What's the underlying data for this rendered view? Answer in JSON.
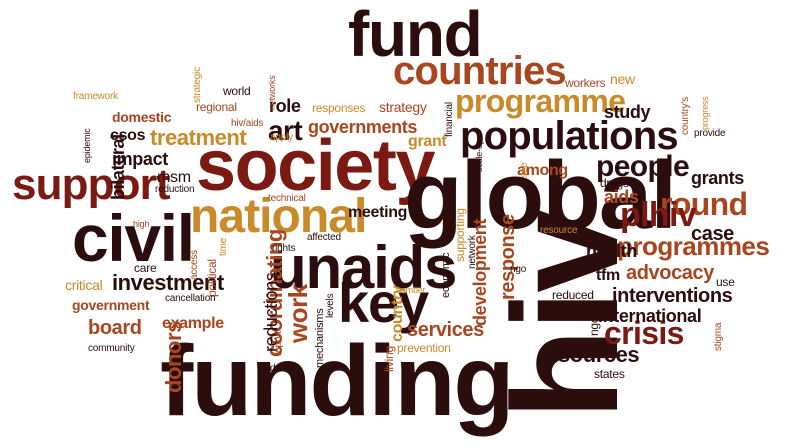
{
  "palette": {
    "dark": "#2b0d0d",
    "maroon": "#7a1a12",
    "rust": "#a8461f",
    "orange": "#c98a2a"
  },
  "words": [
    {
      "text": "fund",
      "color": "dark"
    },
    {
      "text": "countries",
      "color": "rust"
    },
    {
      "text": "programme",
      "color": "orange"
    },
    {
      "text": "populations",
      "color": "dark"
    },
    {
      "text": "society",
      "color": "maroon"
    },
    {
      "text": "support",
      "color": "maroon"
    },
    {
      "text": "civil",
      "color": "dark"
    },
    {
      "text": "global",
      "color": "dark"
    },
    {
      "text": "national",
      "color": "orange"
    },
    {
      "text": "unaids",
      "color": "dark"
    },
    {
      "text": "key",
      "color": "dark"
    },
    {
      "text": "hiv",
      "color": "dark"
    },
    {
      "text": "funding",
      "color": "dark"
    },
    {
      "text": "people",
      "color": "dark"
    },
    {
      "text": "round",
      "color": "rust"
    },
    {
      "text": "plhiv",
      "color": "maroon"
    },
    {
      "text": "programmes",
      "color": "rust"
    },
    {
      "text": "crisis",
      "color": "maroon"
    },
    {
      "text": "art",
      "color": "dark"
    },
    {
      "text": "work",
      "color": "rust"
    },
    {
      "text": "treatment",
      "color": "orange"
    },
    {
      "text": "governments",
      "color": "rust"
    },
    {
      "text": "coordinating",
      "color": "rust"
    },
    {
      "text": "reductions",
      "color": "dark"
    },
    {
      "text": "investment",
      "color": "dark"
    },
    {
      "text": "impact",
      "color": "dark"
    },
    {
      "text": "board",
      "color": "rust"
    },
    {
      "text": "donors",
      "color": "rust"
    },
    {
      "text": "services",
      "color": "rust"
    },
    {
      "text": "resources",
      "color": "dark"
    },
    {
      "text": "health",
      "color": "dark"
    },
    {
      "text": "advocacy",
      "color": "rust"
    },
    {
      "text": "interventions",
      "color": "dark"
    },
    {
      "text": "international",
      "color": "dark"
    },
    {
      "text": "case",
      "color": "dark"
    },
    {
      "text": "aids",
      "color": "rust"
    },
    {
      "text": "grants",
      "color": "dark"
    },
    {
      "text": "study",
      "color": "dark"
    },
    {
      "text": "strategy",
      "color": "rust"
    },
    {
      "text": "role",
      "color": "dark"
    },
    {
      "text": "grant",
      "color": "orange"
    },
    {
      "text": "csos",
      "color": "dark"
    },
    {
      "text": "domestic",
      "color": "rust"
    },
    {
      "text": "msm",
      "color": "dark"
    },
    {
      "text": "bilateral",
      "color": "dark"
    },
    {
      "text": "example",
      "color": "rust"
    },
    {
      "text": "government",
      "color": "rust"
    },
    {
      "text": "critical",
      "color": "orange"
    },
    {
      "text": "tfm",
      "color": "dark"
    },
    {
      "text": "reduced",
      "color": "dark"
    },
    {
      "text": "states",
      "color": "dark"
    },
    {
      "text": "prevention",
      "color": "orange"
    },
    {
      "text": "response",
      "color": "rust"
    },
    {
      "text": "development",
      "color": "rust"
    },
    {
      "text": "among",
      "color": "rust"
    },
    {
      "text": "meeting",
      "color": "dark"
    },
    {
      "text": "workers",
      "color": "rust"
    },
    {
      "text": "new",
      "color": "orange"
    },
    {
      "text": "world",
      "color": "dark"
    },
    {
      "text": "regional",
      "color": "rust"
    },
    {
      "text": "responses",
      "color": "orange"
    },
    {
      "text": "framework",
      "color": "orange"
    },
    {
      "text": "country",
      "color": "orange"
    },
    {
      "text": "political",
      "color": "rust"
    },
    {
      "text": "care",
      "color": "dark"
    },
    {
      "text": "community",
      "color": "dark"
    },
    {
      "text": "cancellation",
      "color": "dark"
    },
    {
      "text": "drugs",
      "color": "dark"
    },
    {
      "text": "provide",
      "color": "dark"
    },
    {
      "text": "use",
      "color": "dark"
    },
    {
      "text": "ngos",
      "color": "dark"
    },
    {
      "text": "stigma",
      "color": "rust"
    },
    {
      "text": "ngo",
      "color": "dark"
    },
    {
      "text": "resource",
      "color": "orange"
    },
    {
      "text": "economic",
      "color": "dark"
    },
    {
      "text": "supporting",
      "color": "orange"
    },
    {
      "text": "network",
      "color": "dark"
    },
    {
      "text": "living",
      "color": "rust"
    },
    {
      "text": "mechanisms",
      "color": "dark"
    },
    {
      "text": "levels",
      "color": "dark"
    },
    {
      "text": "donor",
      "color": "dark"
    },
    {
      "text": "report",
      "color": "rust"
    },
    {
      "text": "rights",
      "color": "dark"
    },
    {
      "text": "affected",
      "color": "dark"
    },
    {
      "text": "technical",
      "color": "rust"
    },
    {
      "text": "access",
      "color": "rust"
    },
    {
      "text": "time",
      "color": "orange"
    },
    {
      "text": "high",
      "color": "rust"
    },
    {
      "text": "reduction",
      "color": "dark"
    },
    {
      "text": "epidemic",
      "color": "dark"
    },
    {
      "text": "strategic",
      "color": "orange"
    },
    {
      "text": "hiv/aids",
      "color": "rust"
    },
    {
      "text": "networks",
      "color": "rust"
    },
    {
      "text": "apply",
      "color": "orange"
    },
    {
      "text": "financial",
      "color": "dark"
    },
    {
      "text": "scale-up",
      "color": "dark"
    },
    {
      "text": "see",
      "color": "orange"
    },
    {
      "text": "country's",
      "color": "rust"
    },
    {
      "text": "progress",
      "color": "orange"
    },
    {
      "text": "number",
      "color": "orange"
    }
  ]
}
